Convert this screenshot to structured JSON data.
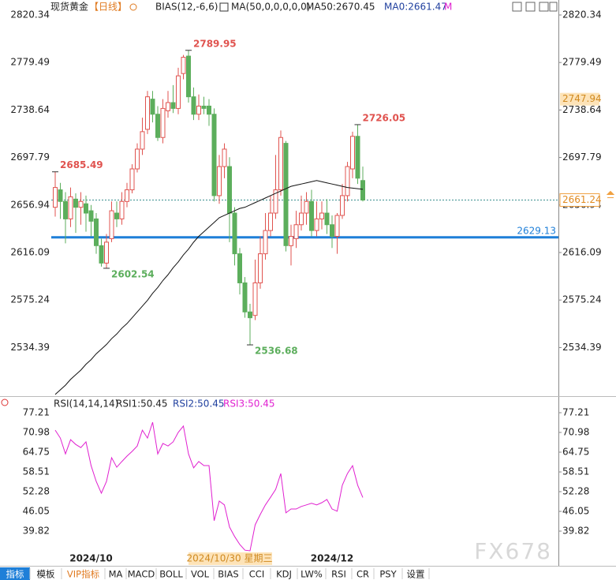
{
  "header": {
    "symbol": "现货黄金",
    "period": "【日线】",
    "indicators": [
      {
        "text": "BIAS(12,-6,6)",
        "color": "#222222"
      },
      {
        "text": "MA(50,0,0,0,0,0)",
        "color": "#222222"
      },
      {
        "text": "MA50:2670.45",
        "color": "#222222"
      },
      {
        "text": "MA0:2661.47",
        "color": "#1f3f9e"
      },
      {
        "text": "M",
        "color": "#e020d0"
      }
    ]
  },
  "chart_data": [
    {
      "type": "candlestick",
      "categories": [
        null,
        null,
        null,
        null,
        null,
        null,
        null,
        "2024/10",
        null,
        null,
        null,
        null,
        null,
        null,
        null,
        null,
        null,
        null,
        null,
        null,
        null,
        null,
        null,
        null,
        null,
        null,
        null,
        null,
        null,
        null,
        null,
        null,
        null,
        null,
        "2024/10/30 星期三",
        null,
        null,
        null,
        null,
        null,
        null,
        null,
        null,
        null,
        null,
        null,
        null,
        null,
        null,
        null,
        null,
        null,
        null,
        null,
        "2024/12",
        null,
        null,
        null,
        null,
        null,
        null
      ],
      "cursor_index": 34,
      "open": [
        2655,
        2670,
        2660,
        2645,
        2662,
        2655,
        2658,
        2652,
        2645,
        2622,
        2607,
        2628,
        2650,
        2645,
        2660,
        2670,
        2688,
        2705,
        2722,
        2748,
        2735,
        2715,
        2738,
        2745,
        2740,
        2770,
        2785,
        2750,
        2735,
        2742,
        2742,
        2735,
        2665,
        2690,
        2690,
        2650,
        2615,
        2590,
        2565,
        2562,
        2590,
        2615,
        2635,
        2650,
        2670,
        2710,
        2622,
        2628,
        2640,
        2650,
        2660,
        2635,
        2645,
        2650,
        2640,
        2630,
        2648,
        2665,
        2688,
        2716,
        2678
      ],
      "high": [
        2685.49,
        2676,
        2668,
        2672,
        2667,
        2668,
        2665,
        2657,
        2650,
        2628,
        2632,
        2660,
        2660,
        2668,
        2676,
        2692,
        2710,
        2732,
        2755,
        2755,
        2742,
        2748,
        2755,
        2760,
        2775,
        2786,
        2789.95,
        2758,
        2752,
        2750,
        2748,
        2740,
        2700,
        2710,
        2698,
        2655,
        2620,
        2595,
        2572,
        2610,
        2630,
        2650,
        2665,
        2700,
        2721,
        2712,
        2640,
        2652,
        2665,
        2668,
        2670,
        2660,
        2660,
        2662,
        2648,
        2650,
        2675,
        2694,
        2720,
        2726.05,
        2690
      ],
      "low": [
        2647,
        2645,
        2624,
        2638,
        2633,
        2640,
        2634,
        2630,
        2615,
        2604,
        2602.54,
        2625,
        2638,
        2640,
        2655,
        2667,
        2685,
        2700,
        2718,
        2728,
        2712,
        2710,
        2732,
        2736,
        2735,
        2765,
        2745,
        2730,
        2730,
        2735,
        2725,
        2660,
        2658,
        2680,
        2625,
        2605,
        2580,
        2560,
        2536.68,
        2558,
        2585,
        2610,
        2630,
        2645,
        2665,
        2617,
        2605,
        2620,
        2635,
        2640,
        2630,
        2630,
        2636,
        2632,
        2620,
        2615,
        2645,
        2660,
        2680,
        2675,
        2660
      ],
      "close": [
        2672,
        2660,
        2645,
        2664,
        2655,
        2660,
        2650,
        2643,
        2622,
        2607,
        2625,
        2652,
        2645,
        2660,
        2670,
        2688,
        2705,
        2720,
        2750,
        2735,
        2715,
        2740,
        2745,
        2740,
        2768,
        2784,
        2750,
        2735,
        2742,
        2740,
        2735,
        2665,
        2690,
        2705,
        2650,
        2615,
        2590,
        2565,
        2560,
        2590,
        2615,
        2635,
        2650,
        2670,
        2715,
        2622,
        2630,
        2640,
        2650,
        2660,
        2635,
        2645,
        2650,
        2640,
        2630,
        2648,
        2665,
        2690,
        2716,
        2680,
        2661.24
      ],
      "up_color": "#e0534f",
      "down_color": "#5cae5c",
      "ma": {
        "color": "#111111",
        "values": [
          2494,
          2498,
          2502,
          2507,
          2511,
          2515,
          2520,
          2524,
          2529,
          2533,
          2537,
          2542,
          2546,
          2551,
          2555,
          2560,
          2565,
          2570,
          2575,
          2581,
          2586,
          2592,
          2597,
          2603,
          2608,
          2614,
          2619,
          2625,
          2630,
          2634,
          2638,
          2642,
          2646,
          2648,
          2650,
          2652,
          2654,
          2655,
          2657,
          2659,
          2661,
          2663,
          2665,
          2667,
          2669,
          2671,
          2673,
          2674,
          2675,
          2676,
          2677,
          2678,
          2677,
          2676,
          2675,
          2674,
          2673,
          2672,
          2671.5,
          2671,
          2670.45
        ]
      },
      "marked_extremes": [
        [
          0,
          "high"
        ],
        [
          10,
          "low"
        ],
        [
          26,
          "high"
        ],
        [
          38,
          "low"
        ],
        [
          59,
          "high"
        ]
      ],
      "hline": {
        "value": 2629.13,
        "color": "#1e7fd8"
      },
      "last_price": 2661.24,
      "cursor_price": 2747.94,
      "ylim": [
        2493.95,
        2833.23
      ],
      "yticks": [
        2534.39,
        2575.24,
        2616.09,
        2656.94,
        2697.79,
        2738.64,
        2779.49,
        2820.34
      ]
    },
    {
      "type": "line",
      "legend": [
        {
          "text": "RSI(14,14,14)",
          "color": "#222222"
        },
        {
          "text": "RSI1:50.45",
          "color": "#222222"
        },
        {
          "text": "RSI2:50.45",
          "color": "#1f3f9e"
        },
        {
          "text": "RSI3:50.45",
          "color": "#e020d0"
        }
      ],
      "series": [
        {
          "color": "#e020d0",
          "values": [
            71.7,
            69.2,
            64.2,
            68.7,
            67.2,
            66.2,
            68.0,
            60.5,
            55.5,
            51.8,
            55.5,
            63.0,
            60.0,
            61.8,
            63.5,
            65.0,
            66.7,
            71.7,
            69.2,
            74.2,
            64.2,
            67.5,
            66.7,
            68.0,
            71.0,
            73.0,
            64.2,
            59.8,
            61.8,
            60.5,
            60.5,
            43.1,
            49.3,
            48.1,
            41.1,
            38.1,
            35.6,
            33.8,
            33.6,
            41.8,
            45.1,
            48.1,
            50.5,
            53.0,
            58.0,
            45.6,
            46.8,
            46.8,
            47.6,
            48.1,
            48.6,
            48.1,
            48.8,
            49.8,
            46.8,
            46.1,
            54.3,
            58.0,
            60.5,
            54.3,
            50.45
          ]
        }
      ],
      "ylim": [
        33.1,
        81.7
      ],
      "yticks": [
        39.82,
        46.05,
        52.28,
        58.51,
        64.75,
        70.98,
        77.21
      ]
    }
  ],
  "toolbar": [
    "指标",
    "模板",
    "VIP指标",
    "MA",
    "MACD",
    "BOLL",
    "VOL",
    "BIAS",
    "CCI",
    "KDJ",
    "LW%",
    "RSI",
    "CR",
    "PSY",
    "设置"
  ],
  "watermark": "FX678"
}
